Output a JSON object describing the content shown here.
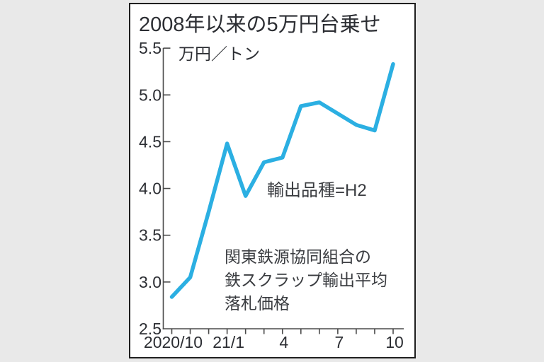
{
  "panel": {
    "title": "2008年以来の5万円台乗せ"
  },
  "chart_data": {
    "type": "line",
    "title": "2008年以来の5万円台乗せ",
    "ylabel": "万円／トン",
    "x": [
      "2020/10",
      "2020/11",
      "2020/12",
      "2021/1",
      "2021/2",
      "2021/3",
      "2021/4",
      "2021/5",
      "2021/6",
      "2021/7",
      "2021/8",
      "2021/9",
      "2021/10"
    ],
    "values": [
      2.84,
      3.05,
      3.75,
      4.48,
      3.92,
      4.28,
      4.33,
      4.88,
      4.92,
      4.8,
      4.68,
      4.62,
      5.33
    ],
    "ylim": [
      2.5,
      5.5
    ],
    "y_ticks": [
      2.5,
      3.0,
      3.5,
      4.0,
      4.5,
      5.0,
      5.5
    ],
    "x_tick_labels": [
      {
        "index": 0,
        "label": "2020/10"
      },
      {
        "index": 3,
        "label": "21/1"
      },
      {
        "index": 6,
        "label": "4"
      },
      {
        "index": 9,
        "label": "7"
      },
      {
        "index": 12,
        "label": "10"
      }
    ],
    "annotations": {
      "variety": "輸出品種=H2",
      "source": "関東鉄源協同組合の\n鉄スクラップ輸出平均\n落札価格"
    },
    "colors": {
      "line": "#2bafe2",
      "axis": "#4a4a4a",
      "text": "#2c2e33",
      "panel_border": "#1f1f1f",
      "background": "#e9e9e9"
    },
    "legend": "none",
    "grid": false
  }
}
